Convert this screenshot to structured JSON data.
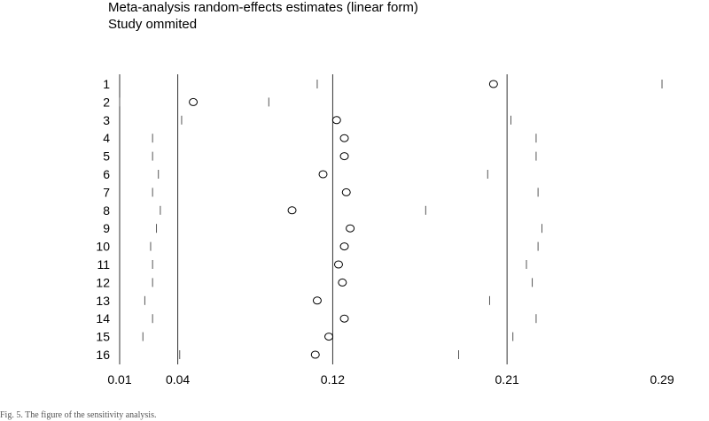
{
  "titles": {
    "line1": "Meta-analysis random-effects estimates (linear form)",
    "line2": "Study ommited"
  },
  "caption": "Fig. 5. The figure of the sensitivity analysis.",
  "chart_data": {
    "type": "scatter",
    "title": "Meta-analysis random-effects estimates (linear form)",
    "subtitle": "Study ommited",
    "x_ticks": [
      0.01,
      0.04,
      0.12,
      0.21,
      0.29
    ],
    "x_tick_labels": [
      "0.01",
      "0.04",
      "0.12",
      "0.21",
      "0.29"
    ],
    "xlim": [
      0.01,
      0.29
    ],
    "reference_lines": {
      "lower_ci": 0.04,
      "estimate": 0.12,
      "upper_ci": 0.21
    },
    "studies": [
      {
        "label": "1",
        "lower": 0.112,
        "estimate": 0.203,
        "upper": 0.29
      },
      {
        "label": "2",
        "lower": 0.01,
        "estimate": 0.048,
        "upper": 0.087
      },
      {
        "label": "3",
        "lower": 0.042,
        "estimate": 0.122,
        "upper": 0.212
      },
      {
        "label": "4",
        "lower": 0.027,
        "estimate": 0.126,
        "upper": 0.225
      },
      {
        "label": "5",
        "lower": 0.027,
        "estimate": 0.126,
        "upper": 0.225
      },
      {
        "label": "6",
        "lower": 0.03,
        "estimate": 0.115,
        "upper": 0.2
      },
      {
        "label": "7",
        "lower": 0.027,
        "estimate": 0.127,
        "upper": 0.226
      },
      {
        "label": "8",
        "lower": 0.031,
        "estimate": 0.099,
        "upper": 0.168
      },
      {
        "label": "9",
        "lower": 0.029,
        "estimate": 0.129,
        "upper": 0.228
      },
      {
        "label": "10",
        "lower": 0.026,
        "estimate": 0.126,
        "upper": 0.226
      },
      {
        "label": "11",
        "lower": 0.027,
        "estimate": 0.123,
        "upper": 0.22
      },
      {
        "label": "12",
        "lower": 0.027,
        "estimate": 0.125,
        "upper": 0.223
      },
      {
        "label": "13",
        "lower": 0.023,
        "estimate": 0.112,
        "upper": 0.201
      },
      {
        "label": "14",
        "lower": 0.027,
        "estimate": 0.126,
        "upper": 0.225
      },
      {
        "label": "15",
        "lower": 0.022,
        "estimate": 0.118,
        "upper": 0.213
      },
      {
        "label": "16",
        "lower": 0.041,
        "estimate": 0.111,
        "upper": 0.185
      }
    ],
    "grid": false,
    "legend": "none"
  }
}
